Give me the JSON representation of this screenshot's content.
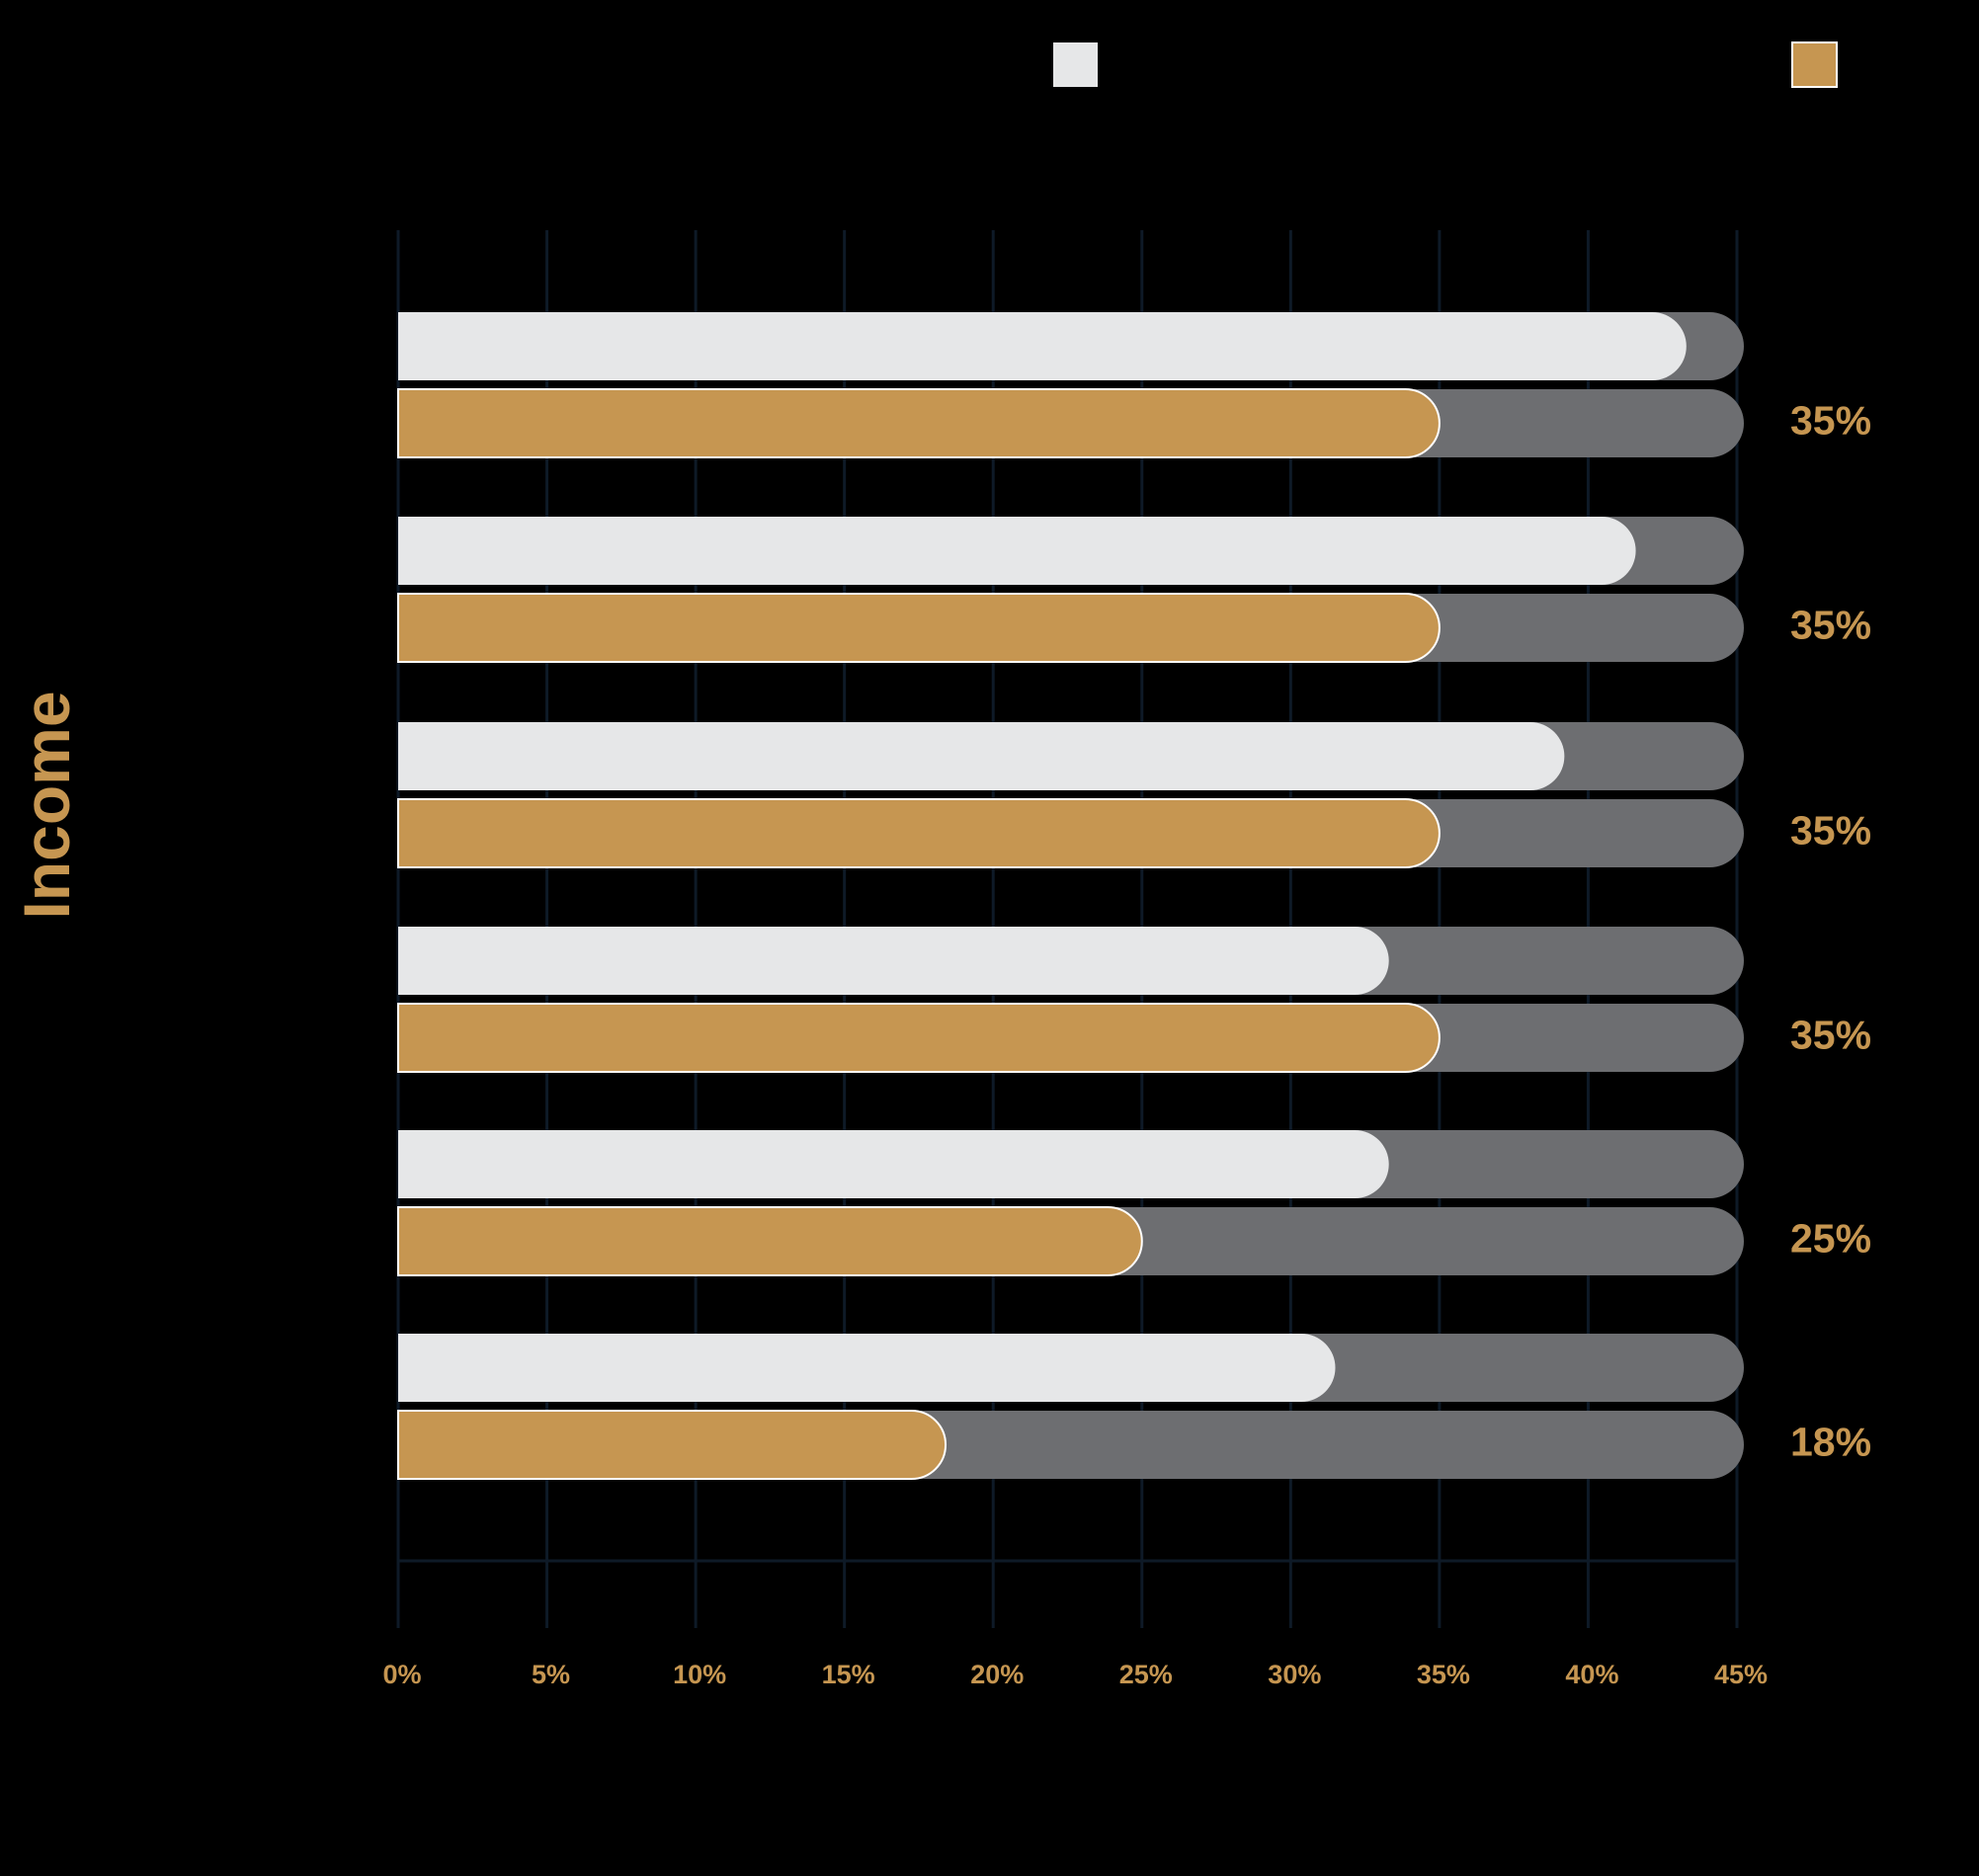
{
  "chart_data": {
    "type": "bar",
    "orientation": "horizontal",
    "title": "",
    "xlabel": "",
    "ylabel": "Income",
    "xlim": [
      0,
      45
    ],
    "xticks": [
      0,
      5,
      10,
      15,
      20,
      25,
      30,
      35,
      40,
      45
    ],
    "xtick_labels": [
      "0%",
      "5%",
      "10%",
      "15%",
      "20%",
      "25%",
      "30%",
      "35%",
      "40%",
      "45%"
    ],
    "grid": true,
    "legend": "top",
    "category_count": 6,
    "series": [
      {
        "color": "#e6e7e8",
        "values": [
          43.3,
          41.6,
          39.2,
          33.3,
          33.3,
          31.5
        ]
      },
      {
        "color": "#c69651",
        "values": [
          35,
          35,
          35,
          35,
          25,
          18.4
        ]
      }
    ],
    "value_labels": [
      "35%",
      "35%",
      "35%",
      "35%",
      "25%",
      "18%"
    ],
    "track_color": "#6d6e71",
    "gridline_color": "#0e1a27"
  },
  "colors": {
    "background": "#000000",
    "accent": "#c69651",
    "label": "#c69651",
    "light_series": "#e6e7e8",
    "track": "#6d6e71"
  }
}
